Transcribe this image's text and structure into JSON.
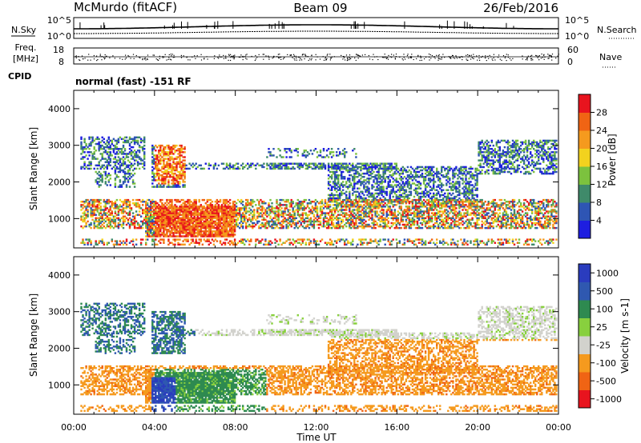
{
  "header": {
    "title": "McMurdo (fitACF)",
    "beam": "Beam 09",
    "date": "26/Feb/2016"
  },
  "strips": {
    "nsky_label": "N.Sky",
    "nsearch_label": "N.Search",
    "nsky_ticks": [
      "10^5",
      "10^0"
    ],
    "nsearch_ticks": [
      "10^5",
      "10^0"
    ],
    "freq_label": "Freq.",
    "freq_unit": "[MHz]",
    "freq_ticks": [
      "18",
      "8"
    ],
    "nave_label": "Nave",
    "nave_ticks": [
      "60",
      "0"
    ],
    "cpid_label": "CPID",
    "mode_text": "normal (fast) -151 RF"
  },
  "colors": {
    "power": [
      "#1e1ee0",
      "#2e55b4",
      "#3f8a6a",
      "#7cc23e",
      "#f2d21e",
      "#f59a1e",
      "#f06414",
      "#e8141e"
    ],
    "velocity": [
      "#e8141e",
      "#f06414",
      "#f59a1e",
      "#d2d2cd",
      "#88d03e",
      "#2e8a50",
      "#2f58b0",
      "#2a3cbe"
    ]
  },
  "chart_data": [
    {
      "type": "heatmap",
      "ylabel": "Slant Range [km]",
      "xlim": [
        "00:00",
        "24:00"
      ],
      "ylim": [
        200,
        4500
      ],
      "yticks": [
        1000,
        2000,
        3000,
        4000
      ],
      "xticks": [
        "00:00",
        "04:00",
        "08:00",
        "12:00",
        "16:00",
        "20:00",
        "00:00"
      ],
      "colorbar_label": "Power [dB]",
      "colorbar_ticks": [
        "4",
        "8",
        "12",
        "16",
        "20",
        "24",
        "28"
      ],
      "value_range": [
        0,
        30
      ]
    },
    {
      "type": "heatmap",
      "ylabel": "Slant Range [km]",
      "xlabel": "Time UT",
      "xlim": [
        "00:00",
        "24:00"
      ],
      "ylim": [
        200,
        4500
      ],
      "yticks": [
        1000,
        2000,
        3000,
        4000
      ],
      "xticks": [
        "00:00",
        "04:00",
        "08:00",
        "12:00",
        "16:00",
        "20:00",
        "00:00"
      ],
      "colorbar_label": "Velocity [m s-1]",
      "colorbar_ticks": [
        "1000",
        "500",
        "100",
        "25",
        "-25",
        "-100",
        "-500",
        "-1000"
      ]
    }
  ]
}
